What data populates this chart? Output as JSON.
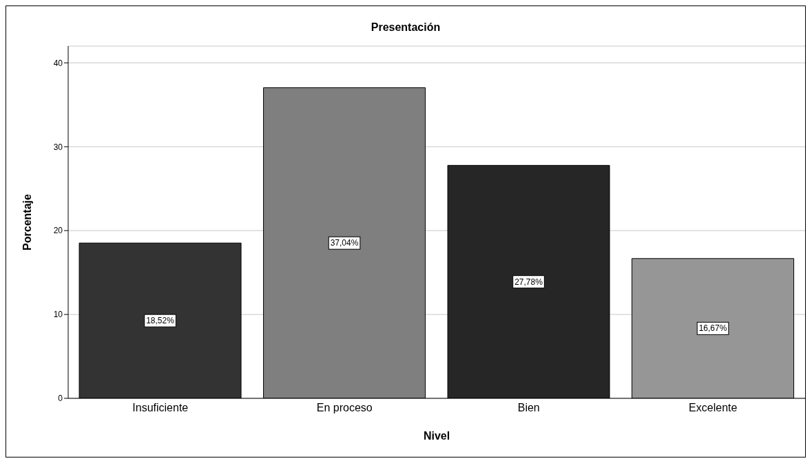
{
  "chart_data": {
    "type": "bar",
    "title": "Presentación",
    "xlabel": "Nivel",
    "ylabel": "Porcentaje",
    "categories": [
      "Insuficiente",
      "En proceso",
      "Bien",
      "Excelente"
    ],
    "values": [
      18.52,
      37.04,
      27.78,
      16.67
    ],
    "colors": [
      "#333333",
      "#7f7f7f",
      "#262626",
      "#969696"
    ],
    "value_labels": [
      "18,52%",
      "37,04%",
      "27,78%",
      "16,67%"
    ],
    "ylim": [
      0,
      42
    ],
    "yticks": [
      0,
      10,
      20,
      30,
      40
    ],
    "grid": "y"
  }
}
